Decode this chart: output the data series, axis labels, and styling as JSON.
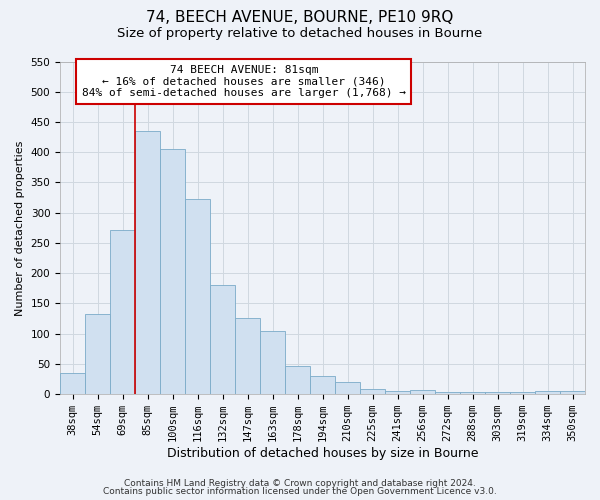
{
  "title": "74, BEECH AVENUE, BOURNE, PE10 9RQ",
  "subtitle": "Size of property relative to detached houses in Bourne",
  "xlabel": "Distribution of detached houses by size in Bourne",
  "ylabel": "Number of detached properties",
  "categories": [
    "38sqm",
    "54sqm",
    "69sqm",
    "85sqm",
    "100sqm",
    "116sqm",
    "132sqm",
    "147sqm",
    "163sqm",
    "178sqm",
    "194sqm",
    "210sqm",
    "225sqm",
    "241sqm",
    "256sqm",
    "272sqm",
    "288sqm",
    "303sqm",
    "319sqm",
    "334sqm",
    "350sqm"
  ],
  "values": [
    35,
    133,
    272,
    435,
    405,
    323,
    181,
    126,
    104,
    46,
    30,
    20,
    8,
    5,
    7,
    3,
    3,
    3,
    3,
    5,
    5
  ],
  "bar_color": "#d0e0f0",
  "bar_edge_color": "#7aaac8",
  "vline_x": 2.5,
  "vline_color": "#cc0000",
  "annotation_line1": "74 BEECH AVENUE: 81sqm",
  "annotation_line2": "← 16% of detached houses are smaller (346)",
  "annotation_line3": "84% of semi-detached houses are larger (1,768) →",
  "annotation_box_color": "#ffffff",
  "annotation_box_edge_color": "#cc0000",
  "ylim": [
    0,
    550
  ],
  "yticks": [
    0,
    50,
    100,
    150,
    200,
    250,
    300,
    350,
    400,
    450,
    500,
    550
  ],
  "grid_color": "#d0d8e0",
  "background_color": "#eef2f8",
  "footer1": "Contains HM Land Registry data © Crown copyright and database right 2024.",
  "footer2": "Contains public sector information licensed under the Open Government Licence v3.0.",
  "title_fontsize": 11,
  "subtitle_fontsize": 9.5,
  "xlabel_fontsize": 9,
  "ylabel_fontsize": 8,
  "tick_fontsize": 7.5,
  "annotation_fontsize": 8,
  "footer_fontsize": 6.5
}
